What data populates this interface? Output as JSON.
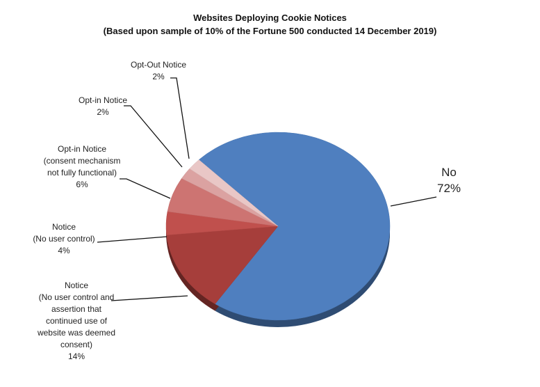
{
  "chart_data": {
    "type": "pie",
    "title": "Websites Deploying Cookie Notices",
    "subtitle": "(Based upon sample of 10% of the Fortune 500 conducted 14 December 2019)",
    "categories": [
      "No",
      "Notice\n(No user control and\nassertion that\ncontinued use of\nwebsite was deemed\nconsent)",
      "Notice\n(No user control)",
      "Opt-in Notice\n(consent mechanism\nnot fully functional)",
      "Opt-in Notice",
      "Opt-Out Notice"
    ],
    "values": [
      72,
      14,
      4,
      6,
      2,
      2
    ],
    "value_labels": [
      "72%",
      "14%",
      "4%",
      "6%",
      "2%",
      "2%"
    ],
    "colors": [
      "#4f7fbf",
      "#a63e3b",
      "#c0504d",
      "#cd7472",
      "#dba2a1",
      "#e9c7c6"
    ]
  }
}
